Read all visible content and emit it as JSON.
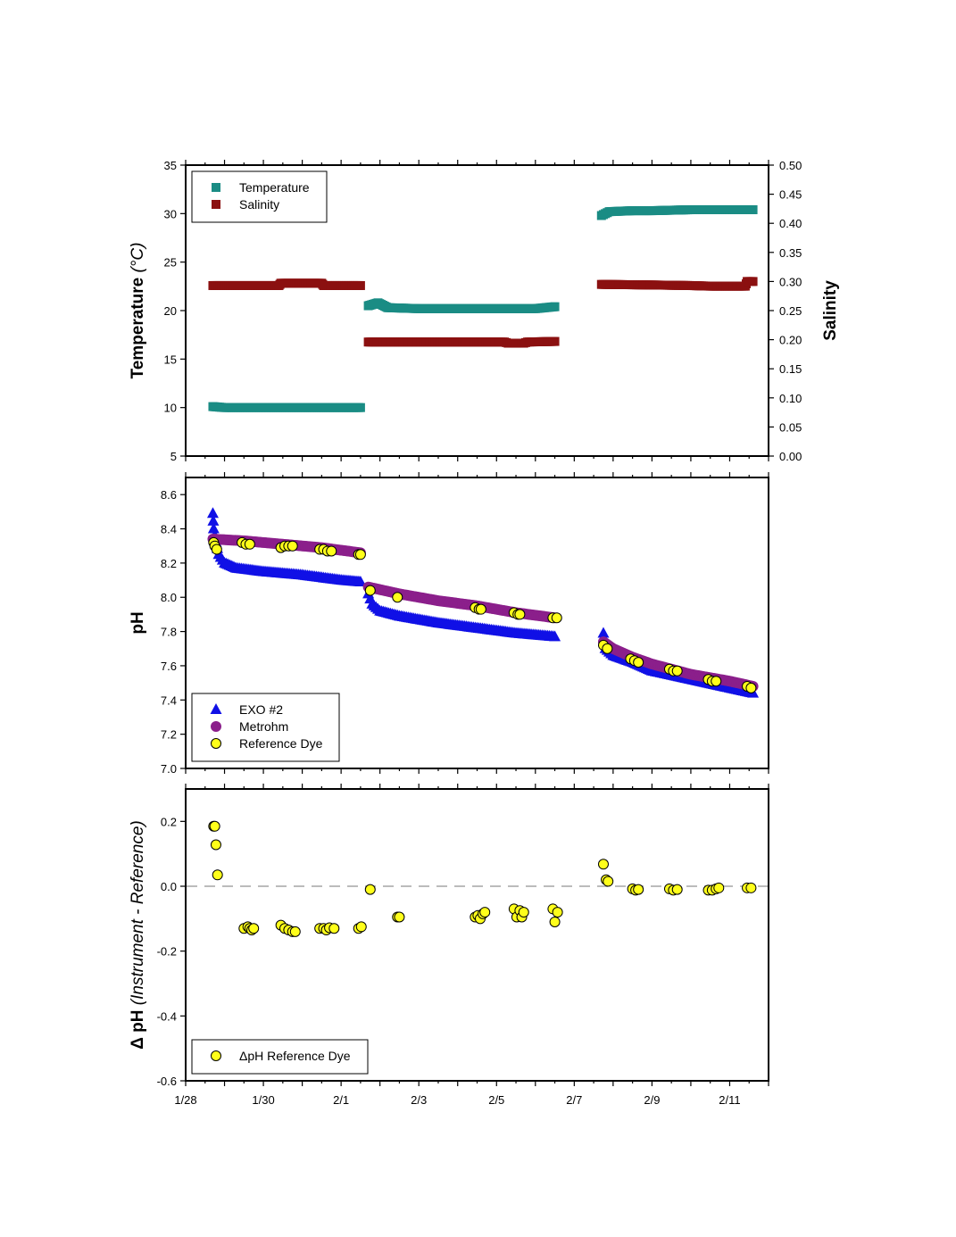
{
  "chart_data": [
    {
      "type": "scatter",
      "xlabel": "",
      "ylabel": "Temperature (°C)",
      "ylabel_plain": "Temperature ",
      "ylabel_italic": "(°C)",
      "y2label": "Salinity",
      "x_ticks": [
        "1/28",
        "1/30",
        "2/1",
        "2/3",
        "2/5",
        "2/7",
        "2/9",
        "2/11"
      ],
      "x_tick_days": [
        0,
        2,
        4,
        6,
        8,
        10,
        12,
        14
      ],
      "ylim": [
        5,
        35
      ],
      "y_ticks": [
        "5",
        "10",
        "15",
        "20",
        "25",
        "30",
        "35"
      ],
      "y2lim": [
        0,
        0.5
      ],
      "y2_ticks": [
        "0.00",
        "0.05",
        "0.10",
        "0.15",
        "0.20",
        "0.25",
        "0.30",
        "0.35",
        "0.40",
        "0.45",
        "0.50"
      ],
      "legend_position": "top-left",
      "series": [
        {
          "name": "Temperature",
          "axis": "left",
          "color": "#1a8c84",
          "marker": "square",
          "segments": [
            [
              [
                0.7,
                10.1
              ],
              [
                1.0,
                10.0
              ],
              [
                2.0,
                10.0
              ],
              [
                3.0,
                10.0
              ],
              [
                4.0,
                10.0
              ],
              [
                4.5,
                10.0
              ]
            ],
            [
              [
                4.7,
                20.5
              ],
              [
                4.95,
                20.8
              ],
              [
                5.2,
                20.3
              ],
              [
                6.0,
                20.2
              ],
              [
                7.0,
                20.2
              ],
              [
                8.0,
                20.2
              ],
              [
                9.0,
                20.2
              ],
              [
                9.5,
                20.4
              ]
            ],
            [
              [
                10.7,
                29.8
              ],
              [
                10.9,
                30.2
              ],
              [
                11.5,
                30.3
              ],
              [
                12.0,
                30.3
              ],
              [
                13.0,
                30.4
              ],
              [
                14.0,
                30.4
              ],
              [
                14.6,
                30.4
              ]
            ]
          ]
        },
        {
          "name": "Salinity",
          "axis": "right",
          "color": "#8b1010",
          "marker": "square",
          "segments": [
            [
              [
                0.7,
                0.293
              ],
              [
                2.4,
                0.293
              ],
              [
                2.45,
                0.297
              ],
              [
                3.5,
                0.297
              ],
              [
                3.55,
                0.293
              ],
              [
                4.5,
                0.293
              ]
            ],
            [
              [
                4.7,
                0.196
              ],
              [
                6.5,
                0.196
              ],
              [
                7.0,
                0.196
              ],
              [
                8.2,
                0.196
              ],
              [
                8.3,
                0.194
              ],
              [
                8.7,
                0.194
              ],
              [
                8.8,
                0.196
              ],
              [
                9.5,
                0.197
              ]
            ],
            [
              [
                10.7,
                0.295
              ],
              [
                12.0,
                0.294
              ],
              [
                13.0,
                0.293
              ],
              [
                13.5,
                0.292
              ],
              [
                14.4,
                0.292
              ],
              [
                14.45,
                0.3
              ],
              [
                14.6,
                0.3
              ]
            ]
          ]
        }
      ]
    },
    {
      "type": "scatter",
      "xlabel": "",
      "ylabel": "pH",
      "ylim": [
        7.0,
        8.7
      ],
      "y_ticks": [
        "7.0",
        "7.2",
        "7.4",
        "7.6",
        "7.8",
        "8.0",
        "8.2",
        "8.4",
        "8.6"
      ],
      "legend_position": "bottom-left",
      "series": [
        {
          "name": "EXO #2",
          "color": "#1010e6",
          "marker": "triangle",
          "segments": [
            [
              [
                0.7,
                8.49
              ],
              [
                0.72,
                8.4
              ],
              [
                0.78,
                8.32
              ],
              [
                0.85,
                8.25
              ],
              [
                1.0,
                8.2
              ],
              [
                1.3,
                8.17
              ],
              [
                2.0,
                8.15
              ],
              [
                3.0,
                8.13
              ],
              [
                4.0,
                8.1
              ],
              [
                4.5,
                8.09
              ]
            ],
            [
              [
                4.7,
                8.02
              ],
              [
                4.8,
                7.96
              ],
              [
                5.0,
                7.92
              ],
              [
                5.5,
                7.89
              ],
              [
                6.5,
                7.85
              ],
              [
                7.5,
                7.82
              ],
              [
                8.5,
                7.79
              ],
              [
                9.5,
                7.77
              ]
            ],
            [
              [
                10.75,
                7.79
              ],
              [
                10.8,
                7.7
              ],
              [
                11.0,
                7.66
              ],
              [
                11.5,
                7.62
              ],
              [
                12.0,
                7.57
              ],
              [
                13.0,
                7.52
              ],
              [
                14.0,
                7.47
              ],
              [
                14.6,
                7.44
              ]
            ]
          ]
        },
        {
          "name": "Metrohm",
          "color": "#8b1f8b",
          "marker": "circle",
          "segments": [
            [
              [
                0.7,
                8.34
              ],
              [
                1.5,
                8.33
              ],
              [
                2.5,
                8.31
              ],
              [
                3.5,
                8.29
              ],
              [
                4.5,
                8.26
              ]
            ],
            [
              [
                4.7,
                8.06
              ],
              [
                5.5,
                8.02
              ],
              [
                6.5,
                7.98
              ],
              [
                7.5,
                7.95
              ],
              [
                8.5,
                7.91
              ],
              [
                9.5,
                7.88
              ]
            ],
            [
              [
                10.75,
                7.74
              ],
              [
                11.0,
                7.7
              ],
              [
                11.5,
                7.65
              ],
              [
                12.0,
                7.61
              ],
              [
                12.5,
                7.58
              ],
              [
                13.0,
                7.55
              ],
              [
                14.0,
                7.51
              ],
              [
                14.6,
                7.48
              ]
            ]
          ]
        },
        {
          "name": "Reference Dye",
          "color": "#ffff1a",
          "marker": "circle",
          "points": [
            [
              0.72,
              8.32
            ],
            [
              0.75,
              8.3
            ],
            [
              0.8,
              8.28
            ],
            [
              1.45,
              8.32
            ],
            [
              1.55,
              8.31
            ],
            [
              1.65,
              8.31
            ],
            [
              2.45,
              8.29
            ],
            [
              2.55,
              8.3
            ],
            [
              2.65,
              8.3
            ],
            [
              2.75,
              8.3
            ],
            [
              3.45,
              8.28
            ],
            [
              3.55,
              8.28
            ],
            [
              3.65,
              8.27
            ],
            [
              3.75,
              8.27
            ],
            [
              4.45,
              8.25
            ],
            [
              4.5,
              8.25
            ],
            [
              4.75,
              8.04
            ],
            [
              5.45,
              8.0
            ],
            [
              7.45,
              7.94
            ],
            [
              7.55,
              7.93
            ],
            [
              7.6,
              7.93
            ],
            [
              8.45,
              7.91
            ],
            [
              8.55,
              7.9
            ],
            [
              8.6,
              7.9
            ],
            [
              9.45,
              7.88
            ],
            [
              9.55,
              7.88
            ],
            [
              10.75,
              7.72
            ],
            [
              10.85,
              7.7
            ],
            [
              11.45,
              7.64
            ],
            [
              11.55,
              7.63
            ],
            [
              11.65,
              7.62
            ],
            [
              12.45,
              7.58
            ],
            [
              12.55,
              7.57
            ],
            [
              12.65,
              7.57
            ],
            [
              13.45,
              7.52
            ],
            [
              13.55,
              7.51
            ],
            [
              13.65,
              7.51
            ],
            [
              14.45,
              7.48
            ],
            [
              14.55,
              7.47
            ]
          ]
        }
      ]
    },
    {
      "type": "scatter",
      "xlabel": "",
      "ylabel": "Δ pH (Instrument - Reference)",
      "ylabel_plain": "Δ pH ",
      "ylabel_italic": "(Instrument - Reference)",
      "ylim": [
        -0.6,
        0.3
      ],
      "y_ticks": [
        "-0.6",
        "-0.4",
        "-0.2",
        "0.0",
        "0.2"
      ],
      "reference_line": 0.0,
      "legend_position": "bottom-left",
      "series": [
        {
          "name": "ΔpH Reference Dye",
          "color": "#ffff1a",
          "marker": "circle",
          "points": [
            [
              0.72,
              0.185
            ],
            [
              0.75,
              0.185
            ],
            [
              0.78,
              0.128
            ],
            [
              0.82,
              0.035
            ],
            [
              1.5,
              -0.13
            ],
            [
              1.6,
              -0.125
            ],
            [
              1.65,
              -0.13
            ],
            [
              1.7,
              -0.135
            ],
            [
              1.75,
              -0.13
            ],
            [
              2.45,
              -0.12
            ],
            [
              2.55,
              -0.13
            ],
            [
              2.65,
              -0.135
            ],
            [
              2.75,
              -0.14
            ],
            [
              2.82,
              -0.14
            ],
            [
              3.45,
              -0.13
            ],
            [
              3.55,
              -0.13
            ],
            [
              3.62,
              -0.135
            ],
            [
              3.7,
              -0.128
            ],
            [
              3.82,
              -0.13
            ],
            [
              4.45,
              -0.13
            ],
            [
              4.52,
              -0.125
            ],
            [
              4.75,
              -0.01
            ],
            [
              5.45,
              -0.095
            ],
            [
              5.5,
              -0.095
            ],
            [
              7.45,
              -0.095
            ],
            [
              7.52,
              -0.09
            ],
            [
              7.58,
              -0.1
            ],
            [
              7.65,
              -0.085
            ],
            [
              7.7,
              -0.08
            ],
            [
              8.45,
              -0.07
            ],
            [
              8.52,
              -0.095
            ],
            [
              8.6,
              -0.075
            ],
            [
              8.65,
              -0.095
            ],
            [
              8.7,
              -0.08
            ],
            [
              9.45,
              -0.07
            ],
            [
              9.5,
              -0.11
            ],
            [
              9.57,
              -0.08
            ],
            [
              10.75,
              0.068
            ],
            [
              10.82,
              0.02
            ],
            [
              10.87,
              0.015
            ],
            [
              11.5,
              -0.008
            ],
            [
              11.58,
              -0.012
            ],
            [
              11.65,
              -0.01
            ],
            [
              12.45,
              -0.008
            ],
            [
              12.55,
              -0.012
            ],
            [
              12.65,
              -0.01
            ],
            [
              13.45,
              -0.012
            ],
            [
              13.55,
              -0.012
            ],
            [
              13.65,
              -0.008
            ],
            [
              13.72,
              -0.005
            ],
            [
              14.45,
              -0.005
            ],
            [
              14.55,
              -0.005
            ]
          ]
        }
      ]
    }
  ]
}
